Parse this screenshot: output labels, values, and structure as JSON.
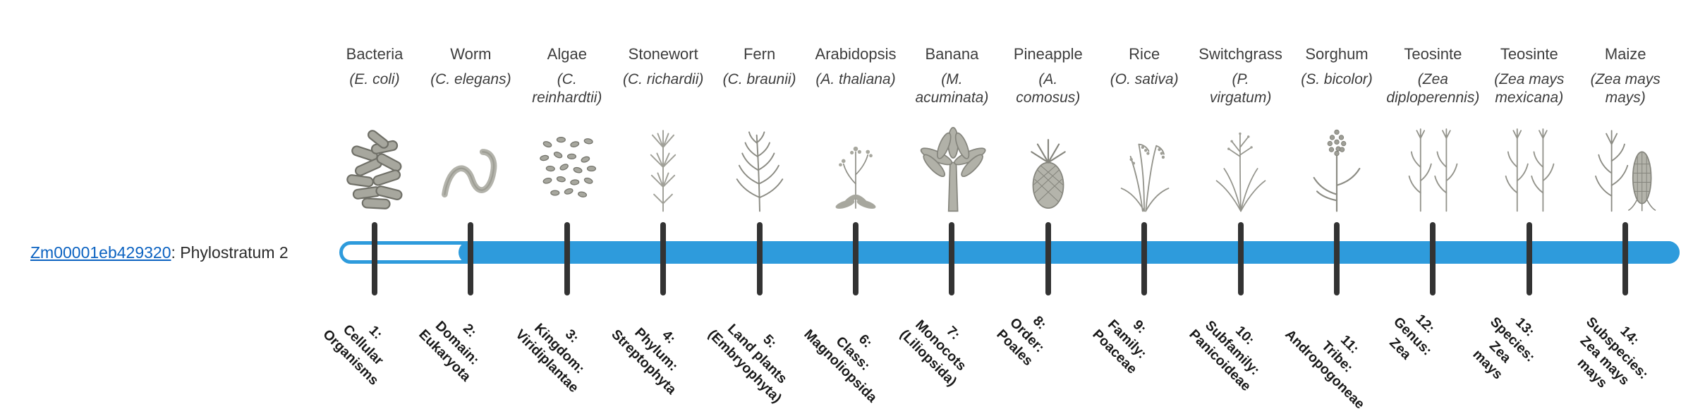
{
  "gene": {
    "id": "Zm00001eb429320",
    "label_rest": ": Phylostratum 2",
    "phylostratum": 2
  },
  "colors": {
    "bar_fill": "#2E9BDC",
    "bar_unfilled": "#FFFFFF",
    "tick": "#333333",
    "link": "#0B62C1"
  },
  "columns": [
    {
      "name": "Bacteria",
      "sci": "(E. coli)",
      "icon": "bacteria-icon",
      "stratum_label": "1:\nCellular\nOrganisms"
    },
    {
      "name": "Worm",
      "sci": "(C. elegans)",
      "icon": "worm-icon",
      "stratum_label": "2:\nDomain:\nEukaryota"
    },
    {
      "name": "Algae",
      "sci": "(C.\nreinhardtii)",
      "icon": "algae-icon",
      "stratum_label": "3:\nKingdom:\nViridiplantae"
    },
    {
      "name": "Stonewort",
      "sci": "(C. richardii)",
      "icon": "stonewort-icon",
      "stratum_label": "4:\nPhylum:\nStreptophyta"
    },
    {
      "name": "Fern",
      "sci": "(C. braunii)",
      "icon": "fern-icon",
      "stratum_label": "5:\nLand plants\n(Embryophyta)"
    },
    {
      "name": "Arabidopsis",
      "sci": "(A. thaliana)",
      "icon": "arabidopsis-icon",
      "stratum_label": "6:\nClass:\nMagnoliopsida"
    },
    {
      "name": "Banana",
      "sci": "(M.\nacuminata)",
      "icon": "banana-icon",
      "stratum_label": "7:\nMonocots\n(Liliopsida)"
    },
    {
      "name": "Pineapple",
      "sci": "(A.\ncomosus)",
      "icon": "pineapple-icon",
      "stratum_label": "8:\nOrder:\nPoales"
    },
    {
      "name": "Rice",
      "sci": "(O. sativa)",
      "icon": "rice-icon",
      "stratum_label": "9:\nFamily:\nPoaceae"
    },
    {
      "name": "Switchgrass",
      "sci": "(P.\nvirgatum)",
      "icon": "switchgrass-icon",
      "stratum_label": "10:\nSubfamily:\nPanicoideae"
    },
    {
      "name": "Sorghum",
      "sci": "(S. bicolor)",
      "icon": "sorghum-icon",
      "stratum_label": "11:\nTribe:\nAndropogoneae"
    },
    {
      "name": "Teosinte",
      "sci": "(Zea\ndiploperennis)",
      "icon": "teosinte-icon",
      "stratum_label": "12:\nGenus:\nZea"
    },
    {
      "name": "Teosinte",
      "sci": "(Zea mays\nmexicana)",
      "icon": "teosinte-icon",
      "stratum_label": "13:\nSpecies:\nZea\nmays"
    },
    {
      "name": "Maize",
      "sci": "(Zea mays\nmays)",
      "icon": "maize-icon",
      "stratum_label": "14:\nSubspecies:\nZea mays\nmays"
    }
  ]
}
